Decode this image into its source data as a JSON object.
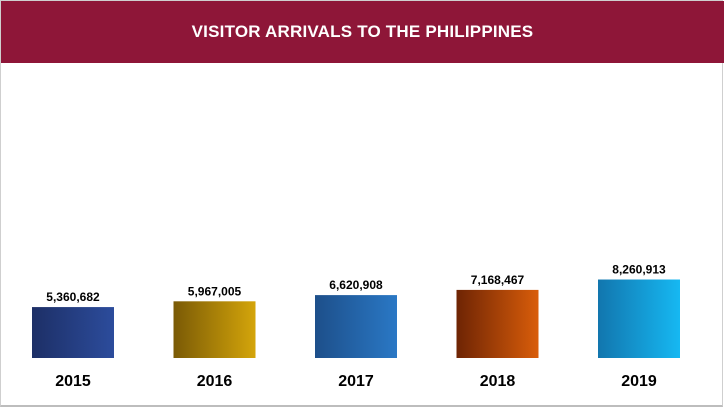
{
  "banner": {
    "title": "VISITOR ARRIVALS TO THE PHILIPPINES"
  },
  "colors": {
    "banner": "#8e1638"
  },
  "chart_data": {
    "type": "bar",
    "title": "VISITOR ARRIVALS TO THE PHILIPPINES",
    "xlabel": "",
    "ylabel": "",
    "grid": false,
    "legend": "none",
    "ylim": [
      0,
      9000000
    ],
    "categories": [
      "2015",
      "2016",
      "2017",
      "2018",
      "2019"
    ],
    "values": [
      5360682,
      5967005,
      6620908,
      7168467,
      8260913
    ],
    "value_labels": [
      "5,360,682",
      "5,967,005",
      "6,620,908",
      "7,168,467",
      "8,260,913"
    ],
    "bar_colors": [
      [
        "#1d2f66",
        "#2c4c9c"
      ],
      [
        "#7a5a06",
        "#d4a50a"
      ],
      [
        "#1d4f8a",
        "#2a78c5"
      ],
      [
        "#6e2404",
        "#d95d0a"
      ],
      [
        "#1276ae",
        "#16b8f2"
      ]
    ]
  }
}
